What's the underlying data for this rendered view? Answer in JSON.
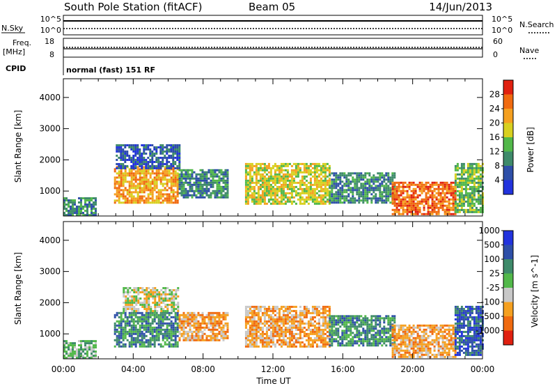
{
  "header": {
    "station": "South Pole Station (fitACF)",
    "beam": "Beam 05",
    "date": "14/Jun/2013"
  },
  "upper_panels": {
    "nsky_label": "N.Sky",
    "nsky_ticks": [
      "10^5",
      "10^0"
    ],
    "nsearch_label": "N.Search",
    "nsearch_ticks": [
      "10^5",
      "10^0"
    ],
    "freq_label": "Freq.",
    "freq_unit": "[MHz]",
    "freq_ticks": [
      "18",
      "8"
    ],
    "nave_label": "Nave",
    "nave_ticks": [
      "60",
      "0"
    ],
    "cpid_label": "CPID",
    "cpid_text": "normal (fast) 151 RF"
  },
  "colors": {
    "power": [
      "#2233dd",
      "#2e4fa8",
      "#3e8a6a",
      "#52b84a",
      "#d8d020",
      "#f5a020",
      "#f06a10",
      "#e02010"
    ],
    "velocity": [
      "#e02010",
      "#f06a10",
      "#f5a020",
      "#c8c8c8",
      "#52b84a",
      "#3e8a6a",
      "#2e4fa8",
      "#2233dd"
    ]
  },
  "chart_data": [
    {
      "type": "heatmap",
      "name": "power",
      "ylabel": "Slant Range [km]",
      "yticks": [
        "1000",
        "2000",
        "3000",
        "4000"
      ],
      "ylim": [
        200,
        4600
      ],
      "xlim": [
        0,
        24
      ],
      "colorbar_label": "Power [dB]",
      "colorbar_ticks": [
        "4",
        "8",
        "12",
        "16",
        "20",
        "24",
        "28"
      ],
      "colorbar_range": [
        0,
        32
      ],
      "regions": [
        {
          "t0": 0.0,
          "t1": 1.8,
          "r0": 250,
          "r1": 800,
          "level": 2
        },
        {
          "t0": 2.9,
          "t1": 6.6,
          "r0": 650,
          "r1": 1800,
          "level": 5
        },
        {
          "t0": 3.0,
          "t1": 6.6,
          "r0": 1750,
          "r1": 2500,
          "level": 1
        },
        {
          "t0": 6.6,
          "t1": 9.4,
          "r0": 800,
          "r1": 1700,
          "level": 2
        },
        {
          "t0": 10.4,
          "t1": 15.2,
          "r0": 600,
          "r1": 1900,
          "level": 4
        },
        {
          "t0": 15.2,
          "t1": 19.0,
          "r0": 600,
          "r1": 1600,
          "level": 2
        },
        {
          "t0": 18.8,
          "t1": 22.4,
          "r0": 250,
          "r1": 1300,
          "level": 6
        },
        {
          "t0": 22.4,
          "t1": 24.0,
          "r0": 300,
          "r1": 1900,
          "level": 3
        }
      ]
    },
    {
      "type": "heatmap",
      "name": "velocity",
      "ylabel": "Slant Range [km]",
      "yticks": [
        "1000",
        "2000",
        "3000",
        "4000"
      ],
      "ylim": [
        200,
        4600
      ],
      "xlim": [
        0,
        24
      ],
      "xticks": [
        "00:00",
        "04:00",
        "08:00",
        "12:00",
        "16:00",
        "20:00",
        "00:00"
      ],
      "xlabel": "Time UT",
      "colorbar_label": "Velocity [m s^-1]",
      "colorbar_ticks": [
        "-1000",
        "-500",
        "-100",
        "-25",
        "25",
        "100",
        "500",
        "1000"
      ],
      "regions": [
        {
          "t0": 0.0,
          "t1": 1.8,
          "r0": 250,
          "r1": 800,
          "level": 4
        },
        {
          "t0": 2.9,
          "t1": 6.6,
          "r0": 600,
          "r1": 1700,
          "level": 5
        },
        {
          "t0": 3.4,
          "t1": 6.6,
          "r0": 1750,
          "r1": 2500,
          "level": 3
        },
        {
          "t0": 6.6,
          "t1": 9.4,
          "r0": 800,
          "r1": 1700,
          "level": 2
        },
        {
          "t0": 10.4,
          "t1": 15.2,
          "r0": 600,
          "r1": 1900,
          "level": 2
        },
        {
          "t0": 15.2,
          "t1": 19.0,
          "r0": 600,
          "r1": 1600,
          "level": 5
        },
        {
          "t0": 18.8,
          "t1": 22.4,
          "r0": 250,
          "r1": 1300,
          "level": 2
        },
        {
          "t0": 22.4,
          "t1": 24.0,
          "r0": 300,
          "r1": 1900,
          "level": 6
        }
      ]
    }
  ]
}
